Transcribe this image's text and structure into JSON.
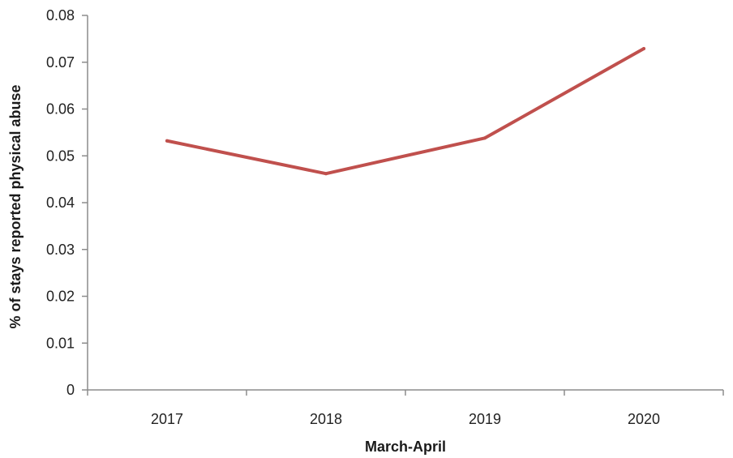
{
  "chart_data": {
    "type": "line",
    "title": "",
    "xlabel": "March-April",
    "ylabel": "% of stays reported physical abuse",
    "categories": [
      "2017",
      "2018",
      "2019",
      "2020"
    ],
    "series": [
      {
        "values": [
          0.0532,
          0.0462,
          0.0538,
          0.0729
        ],
        "color": "#c0504d"
      }
    ],
    "ylim": [
      0,
      0.08
    ],
    "yticks": [
      "0",
      "0.01",
      "0.02",
      "0.03",
      "0.04",
      "0.05",
      "0.06",
      "0.07",
      "0.08"
    ],
    "grid": false,
    "legend": "none"
  }
}
